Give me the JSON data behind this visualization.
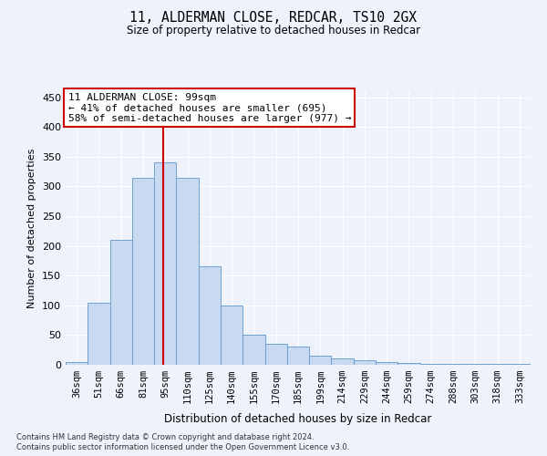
{
  "title1": "11, ALDERMAN CLOSE, REDCAR, TS10 2GX",
  "title2": "Size of property relative to detached houses in Redcar",
  "xlabel": "Distribution of detached houses by size in Redcar",
  "ylabel": "Number of detached properties",
  "categories": [
    "36sqm",
    "51sqm",
    "66sqm",
    "81sqm",
    "95sqm",
    "110sqm",
    "125sqm",
    "140sqm",
    "155sqm",
    "170sqm",
    "185sqm",
    "199sqm",
    "214sqm",
    "229sqm",
    "244sqm",
    "259sqm",
    "274sqm",
    "288sqm",
    "303sqm",
    "318sqm",
    "333sqm"
  ],
  "bar_heights": [
    5,
    105,
    210,
    315,
    340,
    315,
    165,
    100,
    50,
    35,
    30,
    15,
    10,
    8,
    5,
    3,
    2,
    1,
    1,
    1,
    1
  ],
  "bar_color": "#c9d9f0",
  "bar_edge_color": "#6fa0d0",
  "vline_color": "#cc0000",
  "vline_x": 3.9,
  "annotation_text": "11 ALDERMAN CLOSE: 99sqm\n← 41% of detached houses are smaller (695)\n58% of semi-detached houses are larger (977) →",
  "annotation_box_color": "#ffffff",
  "annotation_box_edge": "#cc0000",
  "ylim": [
    0,
    460
  ],
  "yticks": [
    0,
    50,
    100,
    150,
    200,
    250,
    300,
    350,
    400,
    450
  ],
  "background_color": "#eef2fb",
  "grid_color": "#ffffff",
  "footer1": "Contains HM Land Registry data © Crown copyright and database right 2024.",
  "footer2": "Contains public sector information licensed under the Open Government Licence v3.0."
}
